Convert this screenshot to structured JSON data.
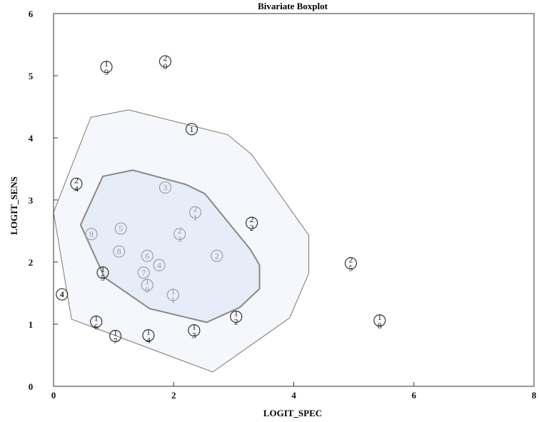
{
  "chart_data": {
    "type": "scatter",
    "subtype": "bivariate-boxplot",
    "title": "Bivariate Boxplot",
    "xlabel": "LOGIT_SPEC",
    "ylabel": "LOGIT_SENS",
    "xlim": [
      0,
      8
    ],
    "ylim": [
      0,
      6
    ],
    "x_ticks": [
      0,
      2,
      4,
      6,
      8
    ],
    "y_ticks": [
      0,
      1,
      2,
      3,
      4,
      5,
      6
    ],
    "grid": false,
    "colors": {
      "outer_fill": "#f5f7fc",
      "inner_fill": "#e6ecf8",
      "outer_stroke": "#777777",
      "inner_stroke": "#888888",
      "point_outer": "#222222",
      "point_inner": "#9a9a9a"
    },
    "hinge_polygon": [
      [
        0.45,
        2.6
      ],
      [
        0.82,
        3.38
      ],
      [
        1.32,
        3.48
      ],
      [
        2.2,
        3.25
      ],
      [
        2.52,
        3.1
      ],
      [
        3.28,
        2.2
      ],
      [
        3.43,
        1.95
      ],
      [
        3.43,
        1.57
      ],
      [
        3.1,
        1.27
      ],
      [
        2.55,
        1.03
      ],
      [
        1.6,
        1.25
      ],
      [
        0.85,
        1.75
      ]
    ],
    "fence_polygon": [
      [
        0,
        2.8
      ],
      [
        0.62,
        4.33
      ],
      [
        1.25,
        4.45
      ],
      [
        2.9,
        4.05
      ],
      [
        3.3,
        3.73
      ],
      [
        4.25,
        2.43
      ],
      [
        4.25,
        1.82
      ],
      [
        3.93,
        1.1
      ],
      [
        2.65,
        0.23
      ],
      [
        0.3,
        1.08
      ]
    ],
    "points": [
      {
        "label": "1\n9",
        "x": 0.88,
        "y": 5.14,
        "zone": "outside"
      },
      {
        "label": "2\n0",
        "x": 1.86,
        "y": 5.23,
        "zone": "outside"
      },
      {
        "label": "1",
        "x": 2.3,
        "y": 4.14,
        "zone": "fence"
      },
      {
        "label": "2\n4",
        "x": 0.38,
        "y": 3.26,
        "zone": "fence"
      },
      {
        "label": "3",
        "x": 1.86,
        "y": 3.2,
        "zone": "inner"
      },
      {
        "label": "2\n1",
        "x": 2.36,
        "y": 2.8,
        "zone": "inner"
      },
      {
        "label": "2\n2",
        "x": 3.3,
        "y": 2.63,
        "zone": "fence"
      },
      {
        "label": "5",
        "x": 1.12,
        "y": 2.54,
        "zone": "inner"
      },
      {
        "label": "9",
        "x": 0.63,
        "y": 2.45,
        "zone": "inner"
      },
      {
        "label": "2\n3",
        "x": 2.1,
        "y": 2.45,
        "zone": "inner"
      },
      {
        "label": "8",
        "x": 1.09,
        "y": 2.17,
        "zone": "inner"
      },
      {
        "label": "6",
        "x": 1.56,
        "y": 2.1,
        "zone": "inner"
      },
      {
        "label": "2",
        "x": 2.72,
        "y": 2.1,
        "zone": "inner"
      },
      {
        "label": "4",
        "x": 1.76,
        "y": 1.95,
        "zone": "inner"
      },
      {
        "label": "7",
        "x": 1.5,
        "y": 1.83,
        "zone": "inner"
      },
      {
        "label": "1\n5",
        "x": 0.82,
        "y": 1.83,
        "zone": "fence"
      },
      {
        "label": "1\n0",
        "x": 1.56,
        "y": 1.63,
        "zone": "inner"
      },
      {
        "label": "1\n1",
        "x": 1.99,
        "y": 1.47,
        "zone": "inner"
      },
      {
        "label": "4",
        "x": 0.14,
        "y": 1.48,
        "zone": "outside"
      },
      {
        "label": "1\n2",
        "x": 3.04,
        "y": 1.12,
        "zone": "fence"
      },
      {
        "label": "1\n6",
        "x": 0.71,
        "y": 1.04,
        "zone": "fence"
      },
      {
        "label": "1\n3",
        "x": 2.34,
        "y": 0.9,
        "zone": "fence"
      },
      {
        "label": "1\n7",
        "x": 1.03,
        "y": 0.81,
        "zone": "fence"
      },
      {
        "label": "1\n4",
        "x": 1.58,
        "y": 0.82,
        "zone": "fence"
      },
      {
        "label": "2\n5",
        "x": 4.95,
        "y": 1.98,
        "zone": "outside"
      },
      {
        "label": "1\n8",
        "x": 5.43,
        "y": 1.06,
        "zone": "outside"
      }
    ]
  }
}
